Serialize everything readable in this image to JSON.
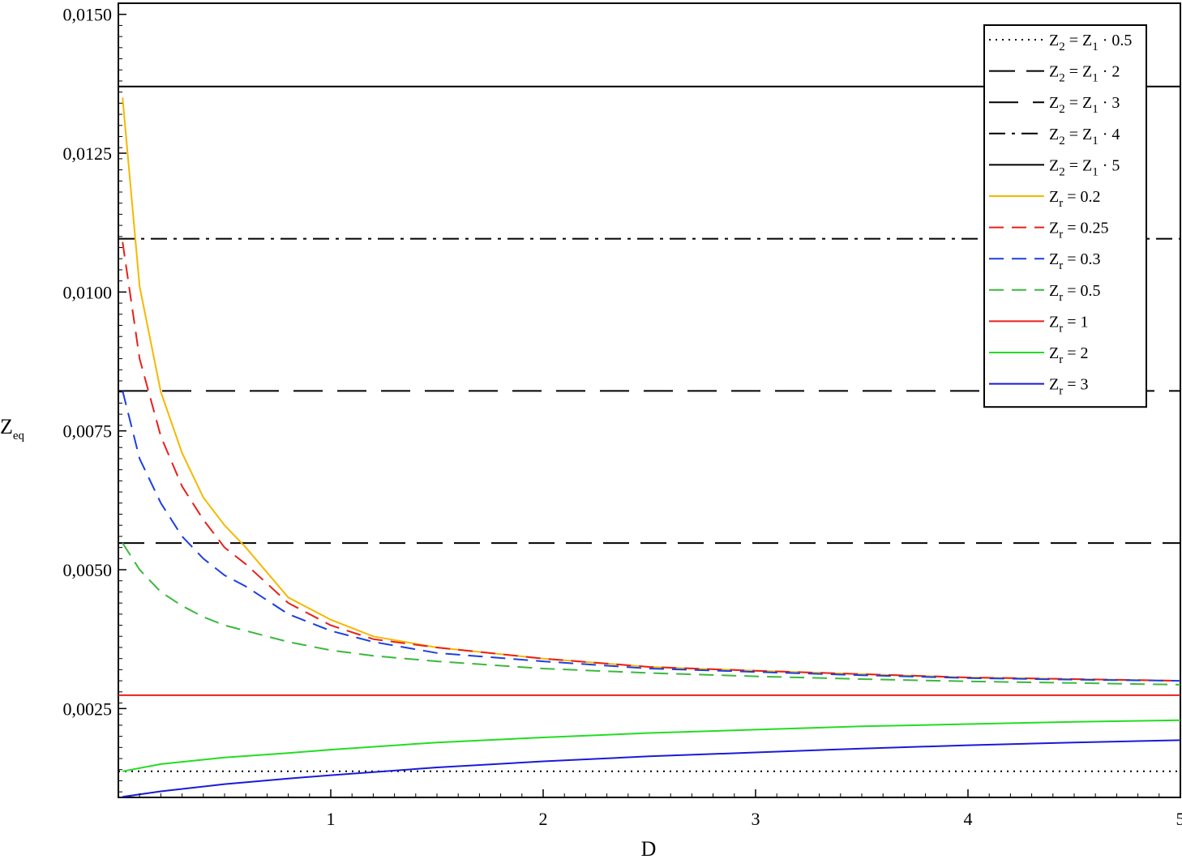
{
  "chart_data": {
    "type": "line",
    "title": "",
    "xlabel": "D",
    "ylabel": {
      "base": "Z",
      "sub": "eq"
    },
    "xlim": [
      0,
      5
    ],
    "ylim": [
      0.0009,
      0.0152
    ],
    "xticks": [
      {
        "value": 1,
        "label": "1"
      },
      {
        "value": 2,
        "label": "2"
      },
      {
        "value": 3,
        "label": "3"
      },
      {
        "value": 4,
        "label": "4"
      },
      {
        "value": 5,
        "label": "5"
      }
    ],
    "yticks": [
      {
        "value": 0.0025,
        "label": "0,0025"
      },
      {
        "value": 0.005,
        "label": "0,0050"
      },
      {
        "value": 0.0075,
        "label": "0,0075"
      },
      {
        "value": 0.01,
        "label": "0,0100"
      },
      {
        "value": 0.0125,
        "label": "0,0125"
      },
      {
        "value": 0.015,
        "label": "0,0150"
      }
    ],
    "grid": false,
    "legend_position": "top-right",
    "series": [
      {
        "id": "z2-05",
        "legend": {
          "lhs": "Z",
          "lhs_sub": "2",
          "rel": " = ",
          "rhs": "Z",
          "rhs_sub": "1",
          "tail": " · 0.5"
        },
        "color": "#000000",
        "dash": "dotted",
        "width": 2,
        "kind": "hline",
        "y": 0.00137
      },
      {
        "id": "z2-2",
        "legend": {
          "lhs": "Z",
          "lhs_sub": "2",
          "rel": " = ",
          "rhs": "Z",
          "rhs_sub": "1",
          "tail": " · 2"
        },
        "color": "#000000",
        "dash": "longdash",
        "width": 2,
        "kind": "hline",
        "y": 0.00548
      },
      {
        "id": "z2-3",
        "legend": {
          "lhs": "Z",
          "lhs_sub": "2",
          "rel": " = ",
          "rhs": "Z",
          "rhs_sub": "1",
          "tail": " · 3"
        },
        "color": "#000000",
        "dash": "longdash2",
        "width": 2,
        "kind": "hline",
        "y": 0.00822
      },
      {
        "id": "z2-4",
        "legend": {
          "lhs": "Z",
          "lhs_sub": "2",
          "rel": " = ",
          "rhs": "Z",
          "rhs_sub": "1",
          "tail": " · 4"
        },
        "color": "#000000",
        "dash": "dashdot",
        "width": 2,
        "kind": "hline",
        "y": 0.01096
      },
      {
        "id": "z2-5",
        "legend": {
          "lhs": "Z",
          "lhs_sub": "2",
          "rel": " = ",
          "rhs": "Z",
          "rhs_sub": "1",
          "tail": " · 5"
        },
        "color": "#000000",
        "dash": "solid",
        "width": 2,
        "kind": "hline",
        "y": 0.0137
      },
      {
        "id": "zr-02",
        "legend": {
          "lhs": "Z",
          "lhs_sub": "r",
          "rel": " = ",
          "tail": "0.2"
        },
        "color": "#f5b800",
        "dash": "solid",
        "width": 2,
        "kind": "curve",
        "x": [
          0.02,
          0.1,
          0.2,
          0.3,
          0.4,
          0.5,
          0.6,
          0.8,
          1.0,
          1.2,
          1.5,
          2.0,
          2.5,
          3.0,
          3.5,
          4.0,
          4.5,
          5.0
        ],
        "y": [
          0.0135,
          0.0101,
          0.0082,
          0.0071,
          0.0063,
          0.0058,
          0.0054,
          0.0045,
          0.0041,
          0.0038,
          0.0036,
          0.0034,
          0.00325,
          0.00318,
          0.00312,
          0.00306,
          0.00303,
          0.003
        ]
      },
      {
        "id": "zr-025",
        "legend": {
          "lhs": "Z",
          "lhs_sub": "r",
          "rel": " = ",
          "tail": "0.25"
        },
        "color": "#e8201a",
        "dash": "dashed",
        "width": 2,
        "kind": "curve",
        "x": [
          0.02,
          0.1,
          0.2,
          0.3,
          0.4,
          0.5,
          0.6,
          0.8,
          1.0,
          1.2,
          1.5,
          2.0,
          2.5,
          3.0,
          3.5,
          4.0,
          4.5,
          5.0
        ],
        "y": [
          0.0109,
          0.0088,
          0.0074,
          0.0065,
          0.0059,
          0.0054,
          0.0051,
          0.0044,
          0.004,
          0.00375,
          0.0036,
          0.0034,
          0.00325,
          0.00318,
          0.00312,
          0.00306,
          0.00303,
          0.003
        ]
      },
      {
        "id": "zr-03",
        "legend": {
          "lhs": "Z",
          "lhs_sub": "r",
          "rel": " = ",
          "tail": "0.3"
        },
        "color": "#1c3fe0",
        "dash": "dashed",
        "width": 2,
        "kind": "curve",
        "x": [
          0.02,
          0.1,
          0.2,
          0.3,
          0.4,
          0.5,
          0.6,
          0.8,
          1.0,
          1.2,
          1.5,
          2.0,
          2.5,
          3.0,
          3.5,
          4.0,
          4.5,
          5.0
        ],
        "y": [
          0.00822,
          0.007,
          0.0062,
          0.0056,
          0.0052,
          0.0049,
          0.0047,
          0.0042,
          0.0039,
          0.0037,
          0.0035,
          0.00335,
          0.00322,
          0.00316,
          0.0031,
          0.00305,
          0.00302,
          0.003
        ]
      },
      {
        "id": "zr-05",
        "legend": {
          "lhs": "Z",
          "lhs_sub": "r",
          "rel": " = ",
          "tail": "0.5"
        },
        "color": "#3cb83c",
        "dash": "dashed",
        "width": 2,
        "kind": "curve",
        "x": [
          0.02,
          0.1,
          0.2,
          0.3,
          0.4,
          0.5,
          0.6,
          0.8,
          1.0,
          1.2,
          1.5,
          2.0,
          2.5,
          3.0,
          3.5,
          4.0,
          4.5,
          5.0
        ],
        "y": [
          0.00548,
          0.005,
          0.0046,
          0.00435,
          0.00415,
          0.004,
          0.0039,
          0.0037,
          0.00355,
          0.00345,
          0.00335,
          0.00322,
          0.00314,
          0.00308,
          0.00303,
          0.00299,
          0.00296,
          0.00293
        ]
      },
      {
        "id": "zr-1",
        "legend": {
          "lhs": "Z",
          "lhs_sub": "r",
          "rel": " = ",
          "tail": "1"
        },
        "color": "#e8201a",
        "dash": "solid",
        "width": 2,
        "kind": "hline",
        "y": 0.00274
      },
      {
        "id": "zr-2",
        "legend": {
          "lhs": "Z",
          "lhs_sub": "r",
          "rel": " = ",
          "tail": "2"
        },
        "color": "#22dd22",
        "dash": "solid",
        "width": 2,
        "kind": "curve",
        "x": [
          0.02,
          0.2,
          0.5,
          0.8,
          1.0,
          1.5,
          2.0,
          2.5,
          3.0,
          3.5,
          4.0,
          4.5,
          5.0
        ],
        "y": [
          0.00137,
          0.0015,
          0.00162,
          0.0017,
          0.00176,
          0.00189,
          0.00198,
          0.00206,
          0.00212,
          0.00218,
          0.00222,
          0.00226,
          0.00229
        ]
      },
      {
        "id": "zr-3",
        "legend": {
          "lhs": "Z",
          "lhs_sub": "r",
          "rel": " = ",
          "tail": "3"
        },
        "color": "#1a1ad8",
        "dash": "solid",
        "width": 2,
        "kind": "curve",
        "x": [
          0.02,
          0.2,
          0.5,
          0.8,
          1.0,
          1.5,
          2.0,
          2.5,
          3.0,
          3.5,
          4.0,
          4.5,
          5.0
        ],
        "y": [
          0.00091,
          0.00101,
          0.00114,
          0.00124,
          0.0013,
          0.00144,
          0.00155,
          0.00164,
          0.00171,
          0.00178,
          0.00184,
          0.00189,
          0.00193
        ]
      }
    ]
  }
}
